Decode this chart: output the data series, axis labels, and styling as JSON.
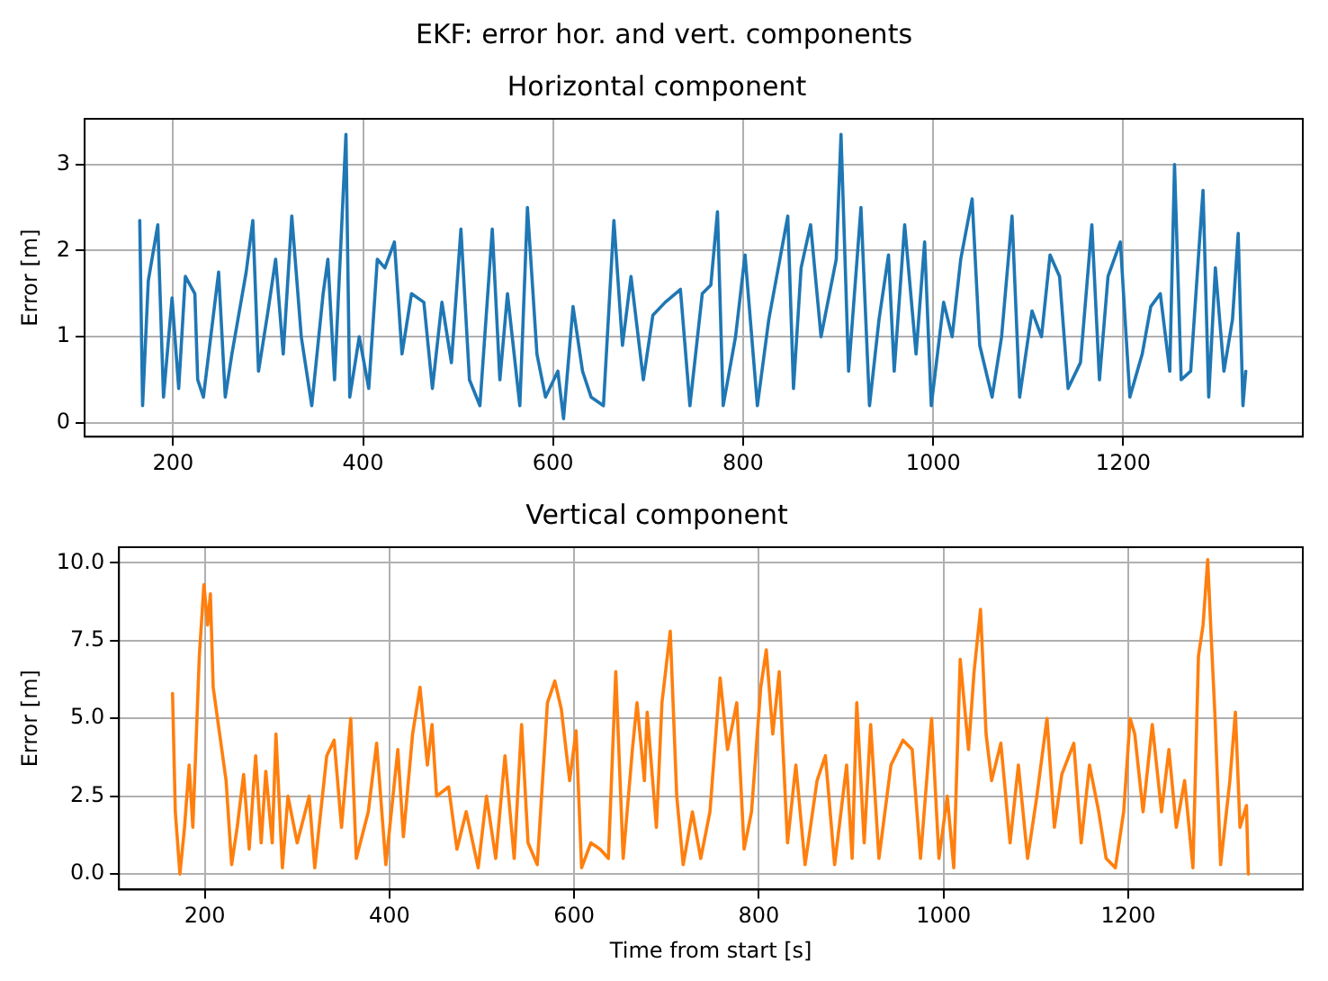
{
  "chart_data": [
    {
      "type": "line",
      "title": "EKF: error hor. and vert. components",
      "subtitle": "Horizontal component",
      "ylabel": "Error [m]",
      "xlim": [
        107,
        1389
      ],
      "xticks": [
        200,
        400,
        600,
        800,
        1000,
        1200
      ],
      "ylim": [
        -0.16,
        3.53
      ],
      "yticks": [
        0,
        1,
        2,
        3
      ],
      "grid": true,
      "legend": false,
      "marker": "none",
      "line_style": "solid",
      "tick_labels": "xy",
      "series": [
        {
          "color": "#1f77b4",
          "x": [
            165,
            168,
            174,
            184,
            190,
            199,
            206,
            213,
            223,
            226,
            232,
            248,
            255,
            262,
            277,
            284,
            290,
            300,
            308,
            316,
            325,
            335,
            346,
            358,
            363,
            370,
            382,
            386,
            396,
            406,
            415,
            423,
            433,
            441,
            451,
            464,
            473,
            483,
            493,
            503,
            512,
            523,
            536,
            544,
            552,
            565,
            573,
            583,
            592,
            605,
            611,
            621,
            631,
            640,
            653,
            664,
            673,
            682,
            695,
            705,
            718,
            734,
            744,
            757,
            766,
            773,
            779,
            792,
            802,
            815,
            827,
            847,
            853,
            861,
            871,
            882,
            898,
            903,
            911,
            924,
            933,
            943,
            953,
            959,
            970,
            982,
            991,
            998,
            1011,
            1020,
            1029,
            1041,
            1049,
            1062,
            1072,
            1083,
            1091,
            1104,
            1114,
            1123,
            1133,
            1142,
            1155,
            1167,
            1175,
            1184,
            1197,
            1207,
            1220,
            1229,
            1239,
            1249,
            1254,
            1261,
            1271,
            1279,
            1284,
            1290,
            1297,
            1306,
            1315,
            1321,
            1326,
            1329
          ],
          "values": [
            2.35,
            0.2,
            1.65,
            2.3,
            0.3,
            1.45,
            0.4,
            1.7,
            1.5,
            0.5,
            0.3,
            1.75,
            0.3,
            0.8,
            1.75,
            2.35,
            0.6,
            1.3,
            1.9,
            0.8,
            2.4,
            1.0,
            0.2,
            1.5,
            1.9,
            0.5,
            3.35,
            0.3,
            1.0,
            0.4,
            1.9,
            1.8,
            2.1,
            0.8,
            1.5,
            1.4,
            0.4,
            1.4,
            0.7,
            2.25,
            0.5,
            0.2,
            2.25,
            0.5,
            1.5,
            0.2,
            2.5,
            0.8,
            0.3,
            0.6,
            0.05,
            1.35,
            0.6,
            0.3,
            0.2,
            2.35,
            0.9,
            1.7,
            0.5,
            1.25,
            1.4,
            1.55,
            0.2,
            1.5,
            1.6,
            2.45,
            0.2,
            1.0,
            1.95,
            0.2,
            1.2,
            2.4,
            0.4,
            1.8,
            2.3,
            1.0,
            1.9,
            3.35,
            0.6,
            2.5,
            0.2,
            1.2,
            1.95,
            0.6,
            2.3,
            0.8,
            2.1,
            0.2,
            1.4,
            1.0,
            1.9,
            2.6,
            0.9,
            0.3,
            1.0,
            2.4,
            0.3,
            1.3,
            1.0,
            1.95,
            1.7,
            0.4,
            0.7,
            2.3,
            0.5,
            1.7,
            2.1,
            0.3,
            0.8,
            1.35,
            1.5,
            0.6,
            3.0,
            0.5,
            0.6,
            1.9,
            2.7,
            0.3,
            1.8,
            0.6,
            1.2,
            2.2,
            0.2,
            0.6
          ]
        }
      ]
    },
    {
      "type": "line",
      "title": "Vertical component",
      "xlabel": "Time from start [s]",
      "ylabel": "Error [m]",
      "xlim": [
        107,
        1389
      ],
      "xticks": [
        200,
        400,
        600,
        800,
        1000,
        1200
      ],
      "ylim": [
        -0.5,
        10.5
      ],
      "yticks": [
        {
          "value": 0,
          "label": "0.0"
        },
        {
          "value": 2.5,
          "label": "2.5"
        },
        {
          "value": 5,
          "label": "5.0"
        },
        {
          "value": 7.5,
          "label": "7.5"
        },
        {
          "value": 10,
          "label": "10.0"
        }
      ],
      "grid": true,
      "legend": false,
      "marker": "none",
      "line_style": "solid",
      "series": [
        {
          "color": "#ff7f0e",
          "x": [
            165,
            168,
            173,
            178,
            183,
            187,
            194,
            199,
            203,
            206,
            209,
            216,
            223,
            229,
            235,
            242,
            248,
            255,
            261,
            266,
            273,
            277,
            284,
            290,
            300,
            313,
            319,
            332,
            340,
            348,
            358,
            364,
            377,
            386,
            396,
            409,
            415,
            425,
            433,
            441,
            446,
            451,
            464,
            473,
            483,
            496,
            505,
            515,
            525,
            535,
            543,
            550,
            560,
            571,
            579,
            586,
            595,
            602,
            608,
            618,
            628,
            637,
            645,
            653,
            663,
            668,
            676,
            679,
            689,
            695,
            704,
            711,
            718,
            728,
            737,
            747,
            758,
            766,
            776,
            784,
            792,
            802,
            808,
            815,
            822,
            831,
            840,
            850,
            863,
            872,
            882,
            895,
            901,
            906,
            914,
            921,
            930,
            943,
            956,
            966,
            975,
            987,
            995,
            1004,
            1011,
            1018,
            1027,
            1033,
            1040,
            1046,
            1052,
            1062,
            1072,
            1081,
            1091,
            1101,
            1112,
            1120,
            1128,
            1141,
            1149,
            1158,
            1168,
            1176,
            1186,
            1195,
            1202,
            1207,
            1216,
            1226,
            1236,
            1244,
            1252,
            1261,
            1270,
            1276,
            1281,
            1286,
            1290,
            1294,
            1300,
            1310,
            1316,
            1321,
            1328,
            1330
          ],
          "values": [
            5.8,
            2.0,
            0.0,
            1.5,
            3.5,
            1.5,
            7.0,
            9.3,
            8.0,
            9.0,
            6.0,
            4.5,
            3.0,
            0.3,
            1.5,
            3.2,
            0.8,
            3.8,
            1.0,
            3.3,
            1.0,
            4.5,
            0.2,
            2.5,
            1.0,
            2.5,
            0.2,
            3.8,
            4.3,
            1.5,
            5.0,
            0.5,
            2.0,
            4.2,
            0.3,
            4.0,
            1.2,
            4.5,
            6.0,
            3.5,
            4.8,
            2.5,
            2.8,
            0.8,
            2.0,
            0.2,
            2.5,
            0.5,
            3.8,
            0.5,
            4.8,
            1.0,
            0.3,
            5.5,
            6.2,
            5.3,
            3.0,
            4.6,
            0.2,
            1.0,
            0.8,
            0.5,
            6.5,
            0.5,
            4.0,
            5.5,
            3.0,
            5.2,
            1.5,
            5.5,
            7.8,
            2.5,
            0.3,
            2.0,
            0.5,
            2.0,
            6.3,
            4.0,
            5.5,
            0.8,
            2.0,
            6.0,
            7.2,
            4.5,
            6.5,
            1.0,
            3.5,
            0.3,
            3.0,
            3.8,
            0.3,
            3.5,
            0.5,
            5.5,
            1.0,
            4.8,
            0.5,
            3.5,
            4.3,
            4.0,
            0.5,
            5.0,
            0.5,
            2.5,
            0.2,
            6.9,
            4.0,
            6.5,
            8.5,
            4.5,
            3.0,
            4.2,
            1.0,
            3.5,
            0.5,
            2.5,
            5.0,
            1.5,
            3.2,
            4.2,
            1.0,
            3.5,
            2.0,
            0.5,
            0.2,
            2.0,
            5.0,
            4.5,
            2.0,
            4.8,
            2.0,
            4.0,
            1.5,
            3.0,
            0.2,
            7.0,
            8.0,
            10.1,
            7.5,
            5.0,
            0.3,
            3.0,
            5.2,
            1.5,
            2.2,
            0.0
          ]
        }
      ]
    }
  ]
}
